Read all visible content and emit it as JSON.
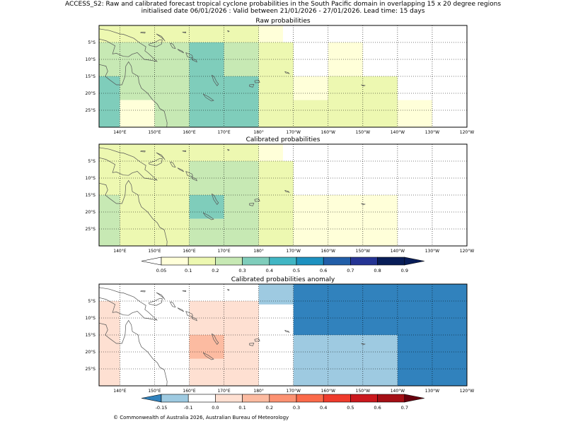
{
  "title": {
    "line1": "ACCESS_S2: Raw and calibrated forecast tropical cyclone probabilities in the South Pacific domain in overlapping 15 x 20 degree regions",
    "line2": "initialised date 06/01/2026 :  Valid between 21/01/2026 - 27/01/2026. Lead time: 15 days"
  },
  "credit": "© Commonwealth of Australia 2026, Australian Bureau of Meteorology",
  "colors": {
    "prob": [
      "#ffffff",
      "#ffffd9",
      "#edf8b1",
      "#c7e9b4",
      "#7fcdbb",
      "#41b6c4",
      "#1d91c0",
      "#225ea8",
      "#253494",
      "#081d58",
      "#081d58"
    ],
    "anom": [
      "#3182bd",
      "#9ecae1",
      "#ffffff",
      "#fee0d2",
      "#fcbba1",
      "#fc9272",
      "#fb6a4a",
      "#ef3b2c",
      "#cb181d",
      "#a50f15",
      "#67000d"
    ],
    "coast": "#555555",
    "grid": "#000000"
  },
  "chart_data": [
    {
      "type": "heatmap",
      "name": "raw",
      "title": "Raw probabilities",
      "xlim": [
        134,
        240
      ],
      "ylim": [
        -30,
        0
      ],
      "xticks": [
        140,
        150,
        160,
        170,
        180,
        190,
        200,
        210,
        220,
        230,
        240
      ],
      "xticklabels": [
        "140°E",
        "150°E",
        "160°E",
        "170°E",
        "180°",
        "170°W",
        "160°W",
        "150°W",
        "140°W",
        "130°W",
        "120°W"
      ],
      "yticks": [
        -5,
        -10,
        -15,
        -20,
        -25
      ],
      "yticklabels": [
        "5°S",
        "10°S",
        "15°S",
        "20°S",
        "25°S"
      ],
      "cells": [
        {
          "lon": [
            134,
            160
          ],
          "lat": [
            -5,
            0
          ],
          "cls": 2
        },
        {
          "lon": [
            160,
            180
          ],
          "lat": [
            -5,
            0
          ],
          "cls": 2
        },
        {
          "lon": [
            180,
            187
          ],
          "lat": [
            -5,
            0
          ],
          "cls": 1
        },
        {
          "lon": [
            134,
            140
          ],
          "lat": [
            -15,
            -5
          ],
          "cls": 3
        },
        {
          "lon": [
            140,
            160
          ],
          "lat": [
            -15,
            -5
          ],
          "cls": 3
        },
        {
          "lon": [
            160,
            170
          ],
          "lat": [
            -30,
            -5
          ],
          "cls": 4
        },
        {
          "lon": [
            170,
            180
          ],
          "lat": [
            -15,
            -5
          ],
          "cls": 3
        },
        {
          "lon": [
            180,
            190
          ],
          "lat": [
            -15,
            -5
          ],
          "cls": 2
        },
        {
          "lon": [
            200,
            210
          ],
          "lat": [
            -15,
            -5
          ],
          "cls": 1
        },
        {
          "lon": [
            134,
            140
          ],
          "lat": [
            -30,
            -15
          ],
          "cls": 4
        },
        {
          "lon": [
            140,
            150
          ],
          "lat": [
            -22,
            -15
          ],
          "cls": 3
        },
        {
          "lon": [
            150,
            160
          ],
          "lat": [
            -30,
            -15
          ],
          "cls": 3
        },
        {
          "lon": [
            140,
            150
          ],
          "lat": [
            -30,
            -22
          ],
          "cls": 1
        },
        {
          "lon": [
            170,
            180
          ],
          "lat": [
            -30,
            -15
          ],
          "cls": 4
        },
        {
          "lon": [
            180,
            190
          ],
          "lat": [
            -30,
            -15
          ],
          "cls": 2
        },
        {
          "lon": [
            190,
            200
          ],
          "lat": [
            -22,
            -15
          ],
          "cls": 1
        },
        {
          "lon": [
            190,
            200
          ],
          "lat": [
            -30,
            -22
          ],
          "cls": 2
        },
        {
          "lon": [
            200,
            220
          ],
          "lat": [
            -30,
            -15
          ],
          "cls": 2
        },
        {
          "lon": [
            220,
            230
          ],
          "lat": [
            -30,
            -22
          ],
          "cls": 1
        }
      ]
    },
    {
      "type": "heatmap",
      "name": "calibrated",
      "title": "Calibrated probabilities",
      "xlim": [
        134,
        240
      ],
      "ylim": [
        -30,
        0
      ],
      "xticks": [
        140,
        150,
        160,
        170,
        180,
        190,
        200,
        210,
        220,
        230,
        240
      ],
      "xticklabels": [
        "140°E",
        "150°E",
        "160°E",
        "170°E",
        "180°",
        "170°W",
        "160°W",
        "150°W",
        "140°W",
        "130°W",
        "120°W"
      ],
      "yticks": [
        -5,
        -10,
        -15,
        -20,
        -25
      ],
      "yticklabels": [
        "5°S",
        "10°S",
        "15°S",
        "20°S",
        "25°S"
      ],
      "cells": [
        {
          "lon": [
            134,
            180
          ],
          "lat": [
            -5,
            0
          ],
          "cls": 2
        },
        {
          "lon": [
            180,
            187
          ],
          "lat": [
            -5,
            0
          ],
          "cls": 1
        },
        {
          "lon": [
            134,
            140
          ],
          "lat": [
            -15,
            -5
          ],
          "cls": 2
        },
        {
          "lon": [
            140,
            160
          ],
          "lat": [
            -15,
            -5
          ],
          "cls": 2
        },
        {
          "lon": [
            160,
            180
          ],
          "lat": [
            -15,
            -5
          ],
          "cls": 3
        },
        {
          "lon": [
            180,
            190
          ],
          "lat": [
            -15,
            -5
          ],
          "cls": 2
        },
        {
          "lon": [
            134,
            140
          ],
          "lat": [
            -30,
            -15
          ],
          "cls": 3
        },
        {
          "lon": [
            140,
            160
          ],
          "lat": [
            -30,
            -15
          ],
          "cls": 2
        },
        {
          "lon": [
            160,
            170
          ],
          "lat": [
            -22,
            -15
          ],
          "cls": 4
        },
        {
          "lon": [
            170,
            180
          ],
          "lat": [
            -30,
            -15
          ],
          "cls": 3
        },
        {
          "lon": [
            160,
            170
          ],
          "lat": [
            -30,
            -22
          ],
          "cls": 3
        },
        {
          "lon": [
            180,
            190
          ],
          "lat": [
            -30,
            -15
          ],
          "cls": 2
        },
        {
          "lon": [
            190,
            220
          ],
          "lat": [
            -30,
            -15
          ],
          "cls": 1
        }
      ]
    },
    {
      "type": "heatmap",
      "name": "anomaly",
      "title": "Calibrated probabilities anomaly",
      "xlim": [
        134,
        240
      ],
      "ylim": [
        -30,
        0
      ],
      "xticks": [
        140,
        150,
        160,
        170,
        180,
        190,
        200,
        210,
        220,
        230,
        240
      ],
      "xticklabels": [
        "140°E",
        "150°E",
        "160°E",
        "170°E",
        "180°",
        "170°W",
        "160°W",
        "150°W",
        "140°W",
        "130°W",
        "120°W"
      ],
      "yticks": [
        -5,
        -10,
        -15,
        -20,
        -25
      ],
      "yticklabels": [
        "5°S",
        "10°S",
        "15°S",
        "20°S",
        "25°S"
      ],
      "cells": [
        {
          "lon": [
            134,
            140
          ],
          "lat": [
            -30,
            -5
          ],
          "cls": 3
        },
        {
          "lon": [
            160,
            180
          ],
          "lat": [
            -30,
            -5
          ],
          "cls": 3
        },
        {
          "lon": [
            160,
            170
          ],
          "lat": [
            -22,
            -15
          ],
          "cls": 4
        },
        {
          "lon": [
            180,
            190
          ],
          "lat": [
            -6,
            0
          ],
          "cls": 1
        },
        {
          "lon": [
            190,
            240
          ],
          "lat": [
            -15,
            0
          ],
          "cls": 0
        },
        {
          "lon": [
            190,
            220
          ],
          "lat": [
            -30,
            -15
          ],
          "cls": 1
        },
        {
          "lon": [
            220,
            240
          ],
          "lat": [
            -30,
            -15
          ],
          "cls": 0
        }
      ]
    }
  ],
  "colorbars": {
    "prob": {
      "ticks": [
        0.05,
        0.1,
        0.2,
        0.3,
        0.4,
        0.5,
        0.6,
        0.7,
        0.8,
        0.9
      ],
      "ticklabels": [
        "0.05",
        "0.1",
        "0.2",
        "0.3",
        "0.4",
        "0.5",
        "0.6",
        "0.7",
        "0.8",
        "0.9"
      ]
    },
    "anom": {
      "ticks": [
        -0.15,
        -0.1,
        0.0,
        0.1,
        0.2,
        0.3,
        0.4,
        0.5,
        0.6,
        0.7
      ],
      "ticklabels": [
        "-0.15",
        "-0.1",
        "0.0",
        "0.1",
        "0.2",
        "0.3",
        "0.4",
        "0.5",
        "0.6",
        "0.7"
      ]
    }
  }
}
